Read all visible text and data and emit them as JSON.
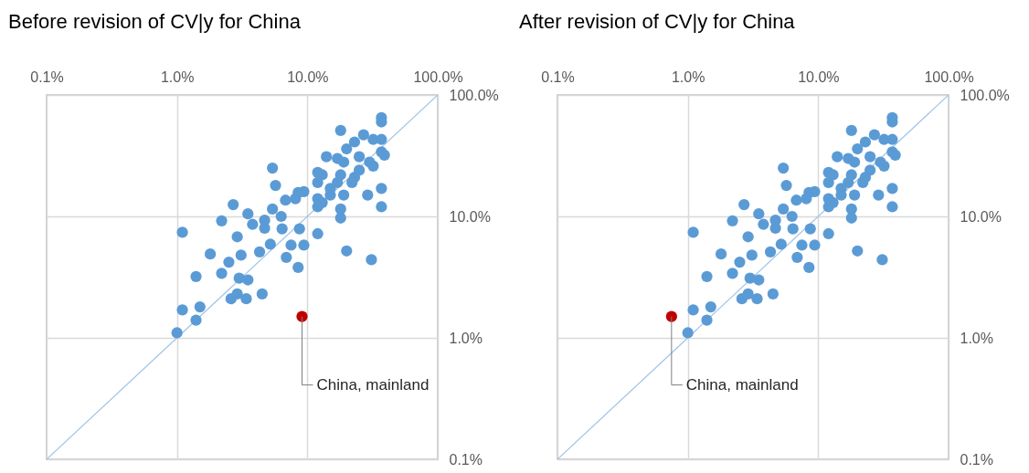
{
  "chart_data": [
    {
      "type": "scatter",
      "title": "Before revision of CV|y for China",
      "xlim": [
        0.1,
        100
      ],
      "ylim": [
        0.1,
        100
      ],
      "log": "xy",
      "grid": true,
      "xticks": [
        {
          "value": 0.1,
          "label": "0.1%"
        },
        {
          "value": 1,
          "label": "1.0%"
        },
        {
          "value": 10,
          "label": "10.0%"
        },
        {
          "value": 100,
          "label": "100.0%"
        }
      ],
      "yticks": [
        {
          "value": 0.1,
          "label": "0.1%"
        },
        {
          "value": 1,
          "label": "1.0%"
        },
        {
          "value": 10,
          "label": "10.0%"
        },
        {
          "value": 100,
          "label": "100.0%"
        }
      ],
      "series": [
        {
          "type": "line",
          "color": "#9dc3e6",
          "x": [
            0.1,
            100
          ],
          "values": [
            0.1,
            100
          ]
        },
        {
          "type": "scatter",
          "marker": "circle",
          "color": "#5b9bd5",
          "x": [
            5.4,
            5.7,
            2.7,
            1.1,
            2.2,
            3.5,
            3.8,
            4.7,
            4.7,
            5.4,
            6.3,
            6.4,
            2.9,
            1.8,
            3.1,
            2.5,
            4.3,
            5.2,
            6.9,
            7.5,
            1.4,
            2.2,
            3.0,
            3.5,
            2.6,
            2.9,
            3.4,
            4.5,
            1.1,
            1.5,
            1.4,
            1.0,
            6.8,
            8.5,
            8.5,
            37,
            37,
            18,
            27,
            23,
            20,
            32,
            37,
            37,
            39,
            14,
            17,
            19,
            25,
            30,
            32,
            25,
            12,
            13,
            18,
            23,
            12,
            17,
            22,
            9.4,
            8.1,
            15,
            15,
            12,
            13,
            19,
            29,
            37,
            37,
            12,
            18,
            18,
            12,
            8.7,
            9.4,
            20,
            31
          ],
          "values": [
            25,
            18,
            12.5,
            7.4,
            9.2,
            10.5,
            8.6,
            9.3,
            8.0,
            11.5,
            10,
            7.9,
            6.8,
            4.9,
            4.8,
            4.2,
            5.1,
            5.9,
            4.6,
            5.8,
            3.2,
            3.4,
            3.1,
            3.0,
            2.1,
            2.3,
            2.1,
            2.3,
            1.7,
            1.8,
            1.4,
            1.1,
            13.6,
            15.7,
            3.8,
            65,
            60,
            51,
            47,
            41,
            36,
            43,
            43,
            34,
            32,
            31,
            30,
            28,
            31,
            28,
            26,
            24,
            23,
            22,
            22,
            21,
            19,
            19,
            19,
            16,
            14,
            17,
            15,
            14,
            13,
            15,
            15,
            17,
            12,
            12,
            11.5,
            9.7,
            7.2,
            7.9,
            5.8,
            5.2,
            4.4
          ]
        },
        {
          "type": "scatter",
          "marker": "circle",
          "color": "#c00000",
          "x": [
            9.1
          ],
          "values": [
            1.5
          ]
        }
      ],
      "annotations": [
        {
          "text": "China, mainland",
          "x": 9.1,
          "y": 1.5
        }
      ]
    },
    {
      "type": "scatter",
      "title": "After revision of CV|y for China",
      "xlim": [
        0.1,
        100
      ],
      "ylim": [
        0.1,
        100
      ],
      "log": "xy",
      "grid": true,
      "xticks": [
        {
          "value": 0.1,
          "label": "0.1%"
        },
        {
          "value": 1,
          "label": "1.0%"
        },
        {
          "value": 10,
          "label": "10.0%"
        },
        {
          "value": 100,
          "label": "100.0%"
        }
      ],
      "yticks": [
        {
          "value": 0.1,
          "label": "0.1%"
        },
        {
          "value": 1,
          "label": "1.0%"
        },
        {
          "value": 10,
          "label": "10.0%"
        },
        {
          "value": 100,
          "label": "100.0%"
        }
      ],
      "series": [
        {
          "type": "line",
          "color": "#9dc3e6",
          "x": [
            0.1,
            100
          ],
          "values": [
            0.1,
            100
          ]
        },
        {
          "type": "scatter",
          "marker": "circle",
          "color": "#5b9bd5",
          "x": [
            5.4,
            5.7,
            2.7,
            1.1,
            2.2,
            3.5,
            3.8,
            4.7,
            4.7,
            5.4,
            6.3,
            6.4,
            2.9,
            1.8,
            3.1,
            2.5,
            4.3,
            5.2,
            6.9,
            7.5,
            1.4,
            2.2,
            3.0,
            3.5,
            2.6,
            2.9,
            3.4,
            4.5,
            1.1,
            1.5,
            1.4,
            1.0,
            6.8,
            8.5,
            8.5,
            37,
            37,
            18,
            27,
            23,
            20,
            32,
            37,
            37,
            39,
            14,
            17,
            19,
            25,
            30,
            32,
            25,
            12,
            13,
            18,
            23,
            12,
            17,
            22,
            9.4,
            8.1,
            15,
            15,
            12,
            13,
            19,
            29,
            37,
            37,
            12,
            18,
            18,
            12,
            8.7,
            9.4,
            20,
            31
          ],
          "values": [
            25,
            18,
            12.5,
            7.4,
            9.2,
            10.5,
            8.6,
            9.3,
            8.0,
            11.5,
            10,
            7.9,
            6.8,
            4.9,
            4.8,
            4.2,
            5.1,
            5.9,
            4.6,
            5.8,
            3.2,
            3.4,
            3.1,
            3.0,
            2.1,
            2.3,
            2.1,
            2.3,
            1.7,
            1.8,
            1.4,
            1.1,
            13.6,
            15.7,
            3.8,
            65,
            60,
            51,
            47,
            41,
            36,
            43,
            43,
            34,
            32,
            31,
            30,
            28,
            31,
            28,
            26,
            24,
            23,
            22,
            22,
            21,
            19,
            19,
            19,
            16,
            14,
            17,
            15,
            14,
            13,
            15,
            15,
            17,
            12,
            12,
            11.5,
            9.7,
            7.2,
            7.9,
            5.8,
            5.2,
            4.4
          ]
        },
        {
          "type": "scatter",
          "marker": "circle",
          "color": "#c00000",
          "x": [
            0.75
          ],
          "values": [
            1.5
          ]
        }
      ],
      "annotations": [
        {
          "text": "China, mainland",
          "x": 0.75,
          "y": 1.5
        }
      ]
    }
  ]
}
